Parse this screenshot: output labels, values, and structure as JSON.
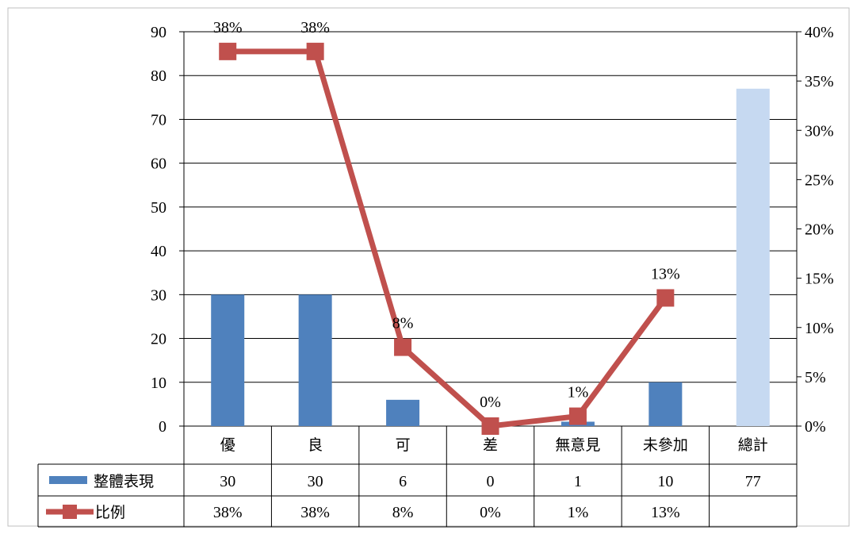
{
  "chart_data": {
    "type": "bar",
    "categories": [
      "優",
      "良",
      "可",
      "差",
      "無意見",
      "未參加",
      "總計"
    ],
    "series": [
      {
        "name": "整體表現",
        "type": "bar",
        "axis": "left",
        "values": [
          30,
          30,
          6,
          0,
          1,
          10,
          77
        ],
        "color": "#4F81BD",
        "highlight_color": "#C6D9F1",
        "table_labels": [
          "30",
          "30",
          "6",
          "0",
          "1",
          "10",
          "77"
        ]
      },
      {
        "name": "比例",
        "type": "line",
        "axis": "right",
        "values": [
          0.38,
          0.38,
          0.08,
          0.0,
          0.01,
          0.13,
          null
        ],
        "color": "#C0504D",
        "labels": [
          "38%",
          "38%",
          "8%",
          "0%",
          "1%",
          "13%",
          ""
        ],
        "table_labels": [
          "38%",
          "38%",
          "8%",
          "0%",
          "1%",
          "13%",
          ""
        ]
      }
    ],
    "y_left": {
      "min": 0,
      "max": 90,
      "step": 10
    },
    "y_right": {
      "min": 0,
      "max": 0.4,
      "step": 0.05,
      "format": "percent"
    },
    "grid": true,
    "legend": "data-table"
  }
}
